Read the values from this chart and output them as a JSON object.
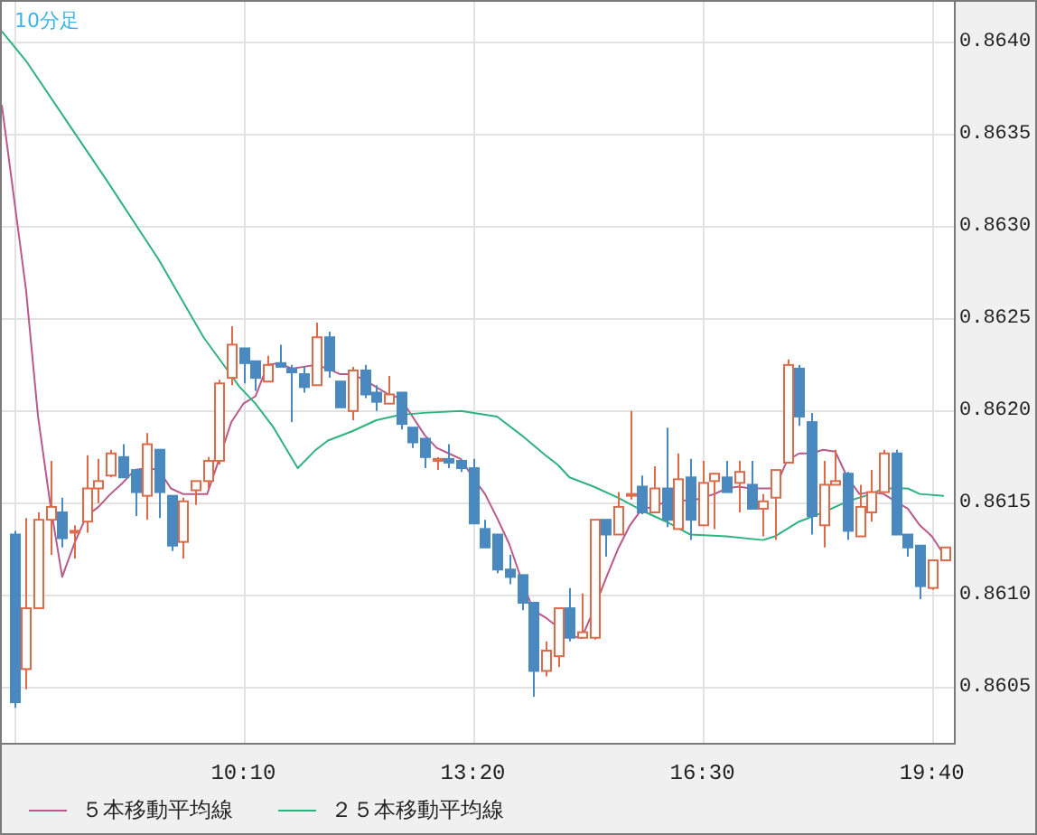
{
  "chart_data": {
    "type": "candlestick",
    "title": "10分足",
    "x": [
      7,
      7.1667,
      7.3333,
      7.5,
      7.6667,
      7.8333,
      8,
      8.1667,
      8.3333,
      8.5,
      8.6667,
      8.8333,
      9,
      9.1667,
      9.3333,
      9.5,
      9.6667,
      9.8333,
      10,
      10.1667,
      10.3333,
      10.5,
      10.6667,
      10.8333,
      11,
      11.1667,
      11.3333,
      11.5,
      11.6667,
      11.8333,
      12,
      12.1667,
      12.3333,
      12.5,
      12.6667,
      12.8333,
      13,
      13.1667,
      13.3333,
      13.5,
      13.6667,
      13.8333,
      14,
      14.1667,
      14.3333,
      14.5,
      14.6667,
      14.8333,
      15,
      15.1667,
      15.3333,
      15.5,
      15.6667,
      15.8333,
      16,
      16.1667,
      16.3333,
      16.5,
      16.6667,
      16.8333,
      17,
      17.1667,
      17.3333,
      17.5,
      17.6667,
      17.8333,
      18,
      18.1667,
      18.3333,
      18.5,
      18.6667,
      18.8333,
      19,
      19.1667,
      19.3333,
      19.5,
      19.6667,
      19.8333
    ],
    "ohlc": [
      [
        0.86133,
        0.86135,
        0.86039,
        0.86042
      ],
      [
        0.8606,
        0.86142,
        0.86049,
        0.86093
      ],
      [
        0.86093,
        0.86145,
        0.86093,
        0.86141
      ],
      [
        0.86141,
        0.86173,
        0.86122,
        0.86148
      ],
      [
        0.86145,
        0.86153,
        0.86126,
        0.86131
      ],
      [
        0.86134,
        0.86138,
        0.8612,
        0.86135
      ],
      [
        0.8614,
        0.86176,
        0.86134,
        0.86158
      ],
      [
        0.86158,
        0.86174,
        0.8615,
        0.86162
      ],
      [
        0.86165,
        0.86179,
        0.86164,
        0.86177
      ],
      [
        0.86175,
        0.86182,
        0.86164,
        0.86164
      ],
      [
        0.86168,
        0.86168,
        0.86143,
        0.86156
      ],
      [
        0.86154,
        0.86188,
        0.86141,
        0.86182
      ],
      [
        0.86179,
        0.86179,
        0.86142,
        0.86156
      ],
      [
        0.86154,
        0.86154,
        0.86124,
        0.86127
      ],
      [
        0.86129,
        0.86153,
        0.8612,
        0.86151
      ],
      [
        0.86157,
        0.86162,
        0.86149,
        0.86162
      ],
      [
        0.86162,
        0.86175,
        0.86158,
        0.86173
      ],
      [
        0.86173,
        0.86217,
        0.86171,
        0.86215
      ],
      [
        0.86218,
        0.86246,
        0.86214,
        0.86236
      ],
      [
        0.86234,
        0.86234,
        0.86215,
        0.86226
      ],
      [
        0.86227,
        0.86227,
        0.86211,
        0.86218
      ],
      [
        0.86216,
        0.8623,
        0.86216,
        0.86225
      ],
      [
        0.86226,
        0.86236,
        0.86224,
        0.86224
      ],
      [
        0.86223,
        0.86225,
        0.86194,
        0.86221
      ],
      [
        0.8622,
        0.86224,
        0.8621,
        0.86213
      ],
      [
        0.86214,
        0.86248,
        0.86214,
        0.8624
      ],
      [
        0.8624,
        0.86243,
        0.86218,
        0.86222
      ],
      [
        0.86216,
        0.86216,
        0.86202,
        0.86202
      ],
      [
        0.862,
        0.86224,
        0.86195,
        0.86222
      ],
      [
        0.86222,
        0.86225,
        0.86207,
        0.86209
      ],
      [
        0.8621,
        0.86214,
        0.862,
        0.86205
      ],
      [
        0.86204,
        0.86219,
        0.86204,
        0.86209
      ],
      [
        0.8621,
        0.8621,
        0.8619,
        0.86193
      ],
      [
        0.86191,
        0.86191,
        0.8618,
        0.86183
      ],
      [
        0.86185,
        0.86185,
        0.86169,
        0.86175
      ],
      [
        0.86173,
        0.86175,
        0.86168,
        0.86174
      ],
      [
        0.86174,
        0.86182,
        0.86169,
        0.86172
      ],
      [
        0.86173,
        0.86173,
        0.86167,
        0.86169
      ],
      [
        0.86169,
        0.86174,
        0.86139,
        0.86139
      ],
      [
        0.86136,
        0.86141,
        0.86126,
        0.86126
      ],
      [
        0.86133,
        0.86133,
        0.86112,
        0.86114
      ],
      [
        0.86114,
        0.86122,
        0.86106,
        0.8611
      ],
      [
        0.86111,
        0.86111,
        0.86092,
        0.86096
      ],
      [
        0.86096,
        0.86096,
        0.86045,
        0.86059
      ],
      [
        0.86059,
        0.86075,
        0.86056,
        0.8607
      ],
      [
        0.86067,
        0.86093,
        0.86061,
        0.86093
      ],
      [
        0.86093,
        0.86104,
        0.86075,
        0.86077
      ],
      [
        0.86077,
        0.86101,
        0.86077,
        0.8608
      ],
      [
        0.86077,
        0.86141,
        0.86076,
        0.86141
      ],
      [
        0.86141,
        0.86141,
        0.86121,
        0.86133
      ],
      [
        0.86133,
        0.86156,
        0.86133,
        0.86148
      ],
      [
        0.86154,
        0.862,
        0.86152,
        0.86155
      ],
      [
        0.86159,
        0.86165,
        0.86144,
        0.86145
      ],
      [
        0.86145,
        0.8617,
        0.86145,
        0.86158
      ],
      [
        0.86158,
        0.86191,
        0.86137,
        0.86141
      ],
      [
        0.86136,
        0.86177,
        0.86136,
        0.86163
      ],
      [
        0.86164,
        0.86174,
        0.8613,
        0.86141
      ],
      [
        0.86138,
        0.86173,
        0.86138,
        0.86161
      ],
      [
        0.86162,
        0.86166,
        0.86136,
        0.86166
      ],
      [
        0.86164,
        0.86173,
        0.86156,
        0.86156
      ],
      [
        0.86161,
        0.86173,
        0.86145,
        0.86167
      ],
      [
        0.8616,
        0.86173,
        0.86147,
        0.86147
      ],
      [
        0.86147,
        0.86155,
        0.86132,
        0.86151
      ],
      [
        0.86153,
        0.86168,
        0.8613,
        0.86168
      ],
      [
        0.86172,
        0.86228,
        0.86172,
        0.86225
      ],
      [
        0.86223,
        0.86225,
        0.86192,
        0.86197
      ],
      [
        0.86194,
        0.86199,
        0.86133,
        0.86143
      ],
      [
        0.86138,
        0.86173,
        0.86126,
        0.8616
      ],
      [
        0.8616,
        0.86179,
        0.8616,
        0.86162
      ],
      [
        0.86166,
        0.86167,
        0.8613,
        0.86135
      ],
      [
        0.86132,
        0.8616,
        0.86132,
        0.86148
      ],
      [
        0.86145,
        0.86168,
        0.8614,
        0.86156
      ],
      [
        0.86156,
        0.86179,
        0.86156,
        0.86177
      ],
      [
        0.86177,
        0.86179,
        0.86133,
        0.86133
      ],
      [
        0.86133,
        0.86133,
        0.86121,
        0.86126
      ],
      [
        0.86127,
        0.86127,
        0.86098,
        0.86105
      ],
      [
        0.86104,
        0.86119,
        0.86103,
        0.86119
      ],
      [
        0.86119,
        0.86126,
        0.86119,
        0.86126
      ]
    ],
    "colors": [
      "#4a88c0",
      "#dd6a48",
      "#dd6a48",
      "#dd6a48",
      "#4a88c0",
      "#dd6a48",
      "#dd6a48",
      "#dd6a48",
      "#dd6a48",
      "#4a88c0",
      "#4a88c0",
      "#dd6a48",
      "#4a88c0",
      "#4a88c0",
      "#dd6a48",
      "#dd6a48",
      "#dd6a48",
      "#dd6a48",
      "#dd6a48",
      "#4a88c0",
      "#4a88c0",
      "#dd6a48",
      "#4a88c0",
      "#4a88c0",
      "#4a88c0",
      "#dd6a48",
      "#4a88c0",
      "#4a88c0",
      "#dd6a48",
      "#4a88c0",
      "#4a88c0",
      "#dd6a48",
      "#4a88c0",
      "#4a88c0",
      "#4a88c0",
      "#dd6a48",
      "#4a88c0",
      "#4a88c0",
      "#4a88c0",
      "#4a88c0",
      "#4a88c0",
      "#4a88c0",
      "#4a88c0",
      "#4a88c0",
      "#dd6a48",
      "#dd6a48",
      "#4a88c0",
      "#dd6a48",
      "#dd6a48",
      "#4a88c0",
      "#dd6a48",
      "#dd6a48",
      "#4a88c0",
      "#dd6a48",
      "#4a88c0",
      "#dd6a48",
      "#4a88c0",
      "#dd6a48",
      "#dd6a48",
      "#4a88c0",
      "#dd6a48",
      "#4a88c0",
      "#dd6a48",
      "#dd6a48",
      "#dd6a48",
      "#4a88c0",
      "#4a88c0",
      "#dd6a48",
      "#dd6a48",
      "#4a88c0",
      "#dd6a48",
      "#dd6a48",
      "#dd6a48",
      "#4a88c0",
      "#4a88c0",
      "#4a88c0",
      "#dd6a48",
      "#dd6a48"
    ],
    "series": [
      {
        "type": "line",
        "name": "５本移動平均線",
        "color": "#b85a8a",
        "x": [
          6.8333,
          7.1667,
          7.3333,
          7.5,
          7.6667,
          7.8333,
          8,
          8.1667,
          8.3333,
          8.5,
          8.6667,
          8.8333,
          9,
          9.1667,
          9.3333,
          9.5,
          9.6667,
          9.8333,
          10,
          10.1667,
          10.3333,
          10.5,
          10.6667,
          10.8333,
          11,
          11.1667,
          11.3333,
          11.5,
          11.6667,
          11.8333,
          12,
          12.1667,
          12.3333,
          12.5,
          12.6667,
          12.8333,
          13,
          13.1667,
          13.3333,
          13.5,
          13.6667,
          13.8333,
          14,
          14.1667,
          14.3333,
          14.5,
          14.6667,
          14.8333,
          15,
          15.1667,
          15.3333,
          15.5,
          15.6667,
          15.8333,
          16,
          16.1667,
          16.3333,
          16.5,
          16.6667,
          16.8333,
          17,
          17.1667,
          17.3333,
          17.5,
          17.6667,
          17.8333,
          18,
          18.1667,
          18.3333,
          18.5,
          18.6667,
          18.8333,
          19,
          19.1667,
          19.3333,
          19.5,
          19.6667,
          19.8333
        ],
        "values": [
          0.86366,
          0.86266,
          0.86197,
          0.8615,
          0.8611,
          0.86128,
          0.86143,
          0.86148,
          0.86155,
          0.86161,
          0.86168,
          0.86169,
          0.86168,
          0.86158,
          0.86155,
          0.86155,
          0.86155,
          0.86174,
          0.86194,
          0.86204,
          0.86208,
          0.86225,
          0.86226,
          0.86223,
          0.86224,
          0.86225,
          0.86223,
          0.8622,
          0.8622,
          0.86217,
          0.86213,
          0.86209,
          0.86207,
          0.86197,
          0.86187,
          0.8618,
          0.86177,
          0.86174,
          0.86164,
          0.86155,
          0.86142,
          0.86128,
          0.86109,
          0.86092,
          0.86088,
          0.86083,
          0.86078,
          0.86077,
          0.86092,
          0.86109,
          0.86125,
          0.86138,
          0.86147,
          0.86148,
          0.86151,
          0.86152,
          0.86151,
          0.86153,
          0.86155,
          0.86158,
          0.86159,
          0.86158,
          0.86158,
          0.86158,
          0.86173,
          0.86177,
          0.86177,
          0.86179,
          0.86178,
          0.86164,
          0.86155,
          0.86156,
          0.86155,
          0.86151,
          0.86147,
          0.86138,
          0.86132,
          0.86122
        ]
      },
      {
        "type": "line",
        "name": "２５本移動平均線",
        "color": "#2fb37e",
        "x": [
          6.8333,
          7.1667,
          7.7333,
          8.2833,
          9,
          9.6167,
          10.1167,
          10.3333,
          10.5833,
          10.9167,
          11.1667,
          11.3333,
          11.6667,
          12,
          12.3333,
          12.6667,
          13.1667,
          13.6667,
          14,
          14.3333,
          14.5,
          14.6667,
          15,
          15.3333,
          15.6667,
          16,
          16.3333,
          16.8333,
          17.3333,
          17.5,
          17.8333,
          18.1667,
          18.5,
          18.8333,
          19,
          19.3333,
          19.5,
          19.8333
        ],
        "values": [
          0.86406,
          0.8639,
          0.86357,
          0.86325,
          0.86282,
          0.8624,
          0.86213,
          0.86204,
          0.86191,
          0.86169,
          0.86179,
          0.86184,
          0.86189,
          0.86195,
          0.86198,
          0.86199,
          0.862,
          0.86197,
          0.86187,
          0.86176,
          0.86171,
          0.86164,
          0.86159,
          0.86153,
          0.86146,
          0.8614,
          0.86133,
          0.86132,
          0.8613,
          0.86132,
          0.8614,
          0.86145,
          0.86151,
          0.86155,
          0.86158,
          0.86158,
          0.86155,
          0.86154
        ]
      }
    ],
    "xlim": [
      6.8333,
      19.97
    ],
    "xticks": [
      {
        "value": 7,
        "label": null
      },
      {
        "value": 10.1667,
        "label": "10:10"
      },
      {
        "value": 13.3333,
        "label": "13:20"
      },
      {
        "value": 16.5,
        "label": "16:30"
      },
      {
        "value": 19.6667,
        "label": "19:40"
      }
    ],
    "ylim": [
      0.8602,
      0.86422
    ],
    "yticks": [
      {
        "value": 0.8605,
        "label": "0.8605"
      },
      {
        "value": 0.861,
        "label": "0.8610"
      },
      {
        "value": 0.8615,
        "label": "0.8615"
      },
      {
        "value": 0.862,
        "label": "0.8620"
      },
      {
        "value": 0.8625,
        "label": "0.8625"
      },
      {
        "value": 0.863,
        "label": "0.8630"
      },
      {
        "value": 0.8635,
        "label": "0.8635"
      },
      {
        "value": 0.864,
        "label": "0.8640"
      }
    ],
    "grid": true,
    "legend": "bottom"
  }
}
